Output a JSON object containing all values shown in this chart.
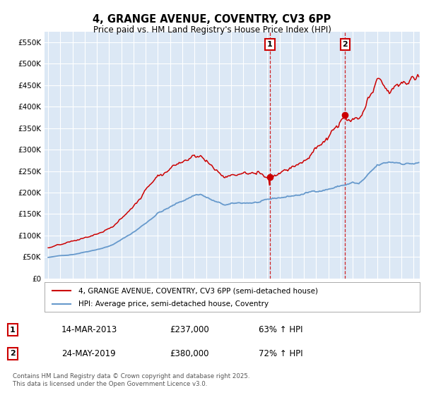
{
  "title": "4, GRANGE AVENUE, COVENTRY, CV3 6PP",
  "subtitle": "Price paid vs. HM Land Registry's House Price Index (HPI)",
  "background_color": "#ffffff",
  "plot_bg_color": "#dce8f5",
  "grid_color": "#ffffff",
  "red_line_color": "#cc0000",
  "blue_line_color": "#6699cc",
  "vline_color": "#cc0000",
  "yticks": [
    0,
    50000,
    100000,
    150000,
    200000,
    250000,
    300000,
    350000,
    400000,
    450000,
    500000,
    550000
  ],
  "ytick_labels": [
    "£0",
    "£50K",
    "£100K",
    "£150K",
    "£200K",
    "£250K",
    "£300K",
    "£350K",
    "£400K",
    "£450K",
    "£500K",
    "£550K"
  ],
  "marker1_date": "14-MAR-2013",
  "marker1_price": "£237,000",
  "marker1_hpi": "63% ↑ HPI",
  "marker1_x": 2013.2,
  "marker1_y": 237000,
  "marker2_date": "24-MAY-2019",
  "marker2_price": "£380,000",
  "marker2_hpi": "72% ↑ HPI",
  "marker2_x": 2019.38,
  "marker2_y": 380000,
  "legend_line1": "4, GRANGE AVENUE, COVENTRY, CV3 6PP (semi-detached house)",
  "legend_line2": "HPI: Average price, semi-detached house, Coventry",
  "footnote": "Contains HM Land Registry data © Crown copyright and database right 2025.\nThis data is licensed under the Open Government Licence v3.0.",
  "xmin": 1994.7,
  "xmax": 2025.5
}
